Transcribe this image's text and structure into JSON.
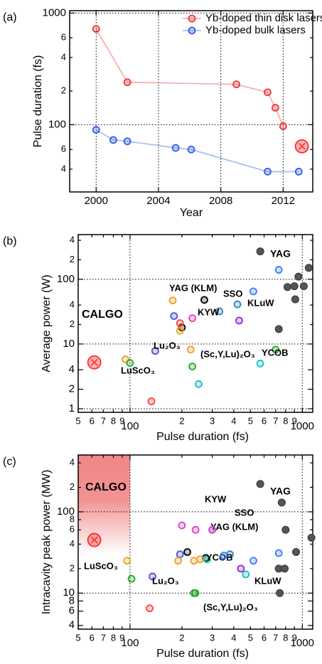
{
  "chart_data": [
    {
      "type": "line",
      "panel_label": "(a)",
      "x_label": "Year",
      "y_label": "Pulse duration (fs)",
      "y_scale": "log",
      "grid": true,
      "legend": "upper right",
      "xlim": [
        1998.3,
        2013.9
      ],
      "ylim": [
        25,
        1050
      ],
      "xticks": [
        2000,
        2004,
        2008,
        2012
      ],
      "yticks": [
        1000,
        {
          "value": 600,
          "label": "6"
        },
        {
          "value": 400,
          "label": "4"
        },
        {
          "value": 200,
          "label": "2"
        },
        100,
        {
          "value": 60,
          "label": "6"
        },
        {
          "value": 40,
          "label": "4"
        }
      ],
      "series": [
        {
          "name": "Yb-doped thin disk lasers",
          "color": "#e8383d",
          "x": [
            2000,
            2002,
            2009,
            2011,
            2011.5,
            2012
          ],
          "values": [
            720,
            240,
            230,
            195,
            142,
            97
          ]
        },
        {
          "name": "Yb-doped bulk lasers",
          "color": "#2f5fe0",
          "x": [
            2000,
            2001.1,
            2002,
            2005.1,
            2006.1,
            2011,
            2013
          ],
          "values": [
            90,
            73,
            71,
            62,
            60,
            38,
            38
          ]
        },
        {
          "color": "#ff2a2a",
          "marker": "cross-circle",
          "x": [
            2013.2
          ],
          "values": [
            64
          ]
        }
      ]
    },
    {
      "type": "scatter",
      "panel_label": "(b)",
      "x_label": "Pulse duration (fs)",
      "y_label": "Average power (W)",
      "x_scale": "log",
      "y_scale": "log",
      "grid": true,
      "xlim": [
        50,
        1150
      ],
      "ylim": [
        0.88,
        490
      ],
      "xticks": [
        {
          "value": 50,
          "label": "5"
        },
        {
          "value": 60,
          "label": "6"
        },
        {
          "value": 70,
          "label": "7"
        },
        {
          "value": 80,
          "label": "8"
        },
        {
          "value": 90,
          "label": "9"
        },
        100,
        {
          "value": 200,
          "label": "2"
        },
        {
          "value": 300,
          "label": "3"
        },
        {
          "value": 400,
          "label": "4"
        },
        {
          "value": 500,
          "label": "5"
        },
        {
          "value": 600,
          "label": "6"
        },
        {
          "value": 700,
          "label": "7"
        },
        {
          "value": 800,
          "label": "8"
        },
        {
          "value": 900,
          "label": "9"
        },
        1000
      ],
      "yticks": [
        {
          "value": 400,
          "label": "4"
        },
        {
          "value": 200,
          "label": "2"
        },
        100,
        {
          "value": 40,
          "label": "4"
        },
        {
          "value": 20,
          "label": "2"
        },
        10,
        4,
        2,
        1
      ],
      "series": [
        {
          "name": "YAG",
          "color": "#555555",
          "label_color": "#000000",
          "marker": "solid",
          "x": [
            570,
            1090,
            950,
            1020,
            900,
            820,
            910,
            730
          ],
          "values": [
            270,
            150,
            110,
            78,
            78,
            76,
            49,
            17
          ]
        },
        {
          "name": "YAG (KLM)",
          "color": "#000000",
          "x": [
            270,
            200
          ],
          "values": [
            48,
            18
          ]
        },
        {
          "name": "SSO",
          "color": "#2a86b8",
          "x": [
            330,
            420
          ],
          "values": [
            32,
            41
          ]
        },
        {
          "name": "KLuW",
          "color": "#8a2be2",
          "x": [
            430
          ],
          "values": [
            23
          ]
        },
        {
          "name": "KYW",
          "color": "#e040c0",
          "x": [
            230
          ],
          "values": [
            25
          ]
        },
        {
          "name": "Lu₂O₃",
          "color": "#4a50e0",
          "x": [
            180,
            140
          ],
          "values": [
            27,
            7.8
          ]
        },
        {
          "name": "LuScO₃",
          "color": "#f0a020",
          "x": [
            94,
            195,
            225,
            177
          ],
          "values": [
            5.8,
            16,
            8.2,
            47
          ]
        },
        {
          "name": "(Sc,Y,Lu)₂O₃",
          "color": "#28a828",
          "x": [
            100,
            230,
            700
          ],
          "values": [
            5.1,
            4.5,
            8.2
          ]
        },
        {
          "name": "YCOB",
          "color": "#20bcc8",
          "x": [
            570,
            250
          ],
          "values": [
            5,
            2.4
          ]
        },
        {
          "color": "#3b7bff",
          "x": [
            730,
            520
          ],
          "values": [
            140,
            65
          ]
        },
        {
          "color": "#ff4040",
          "x": [
            195,
            133
          ],
          "values": [
            21,
            1.3
          ]
        },
        {
          "name": "CALGO",
          "color": "#ff2a2a",
          "marker": "cross-circle",
          "x": [
            62
          ],
          "values": [
            5.2
          ]
        }
      ]
    },
    {
      "type": "scatter",
      "panel_label": "(c)",
      "x_label": "Pulse duration (fs)",
      "y_label": "Intracavity peak power (MW)",
      "x_scale": "log",
      "y_scale": "log",
      "grid": true,
      "xlim": [
        50,
        1150
      ],
      "ylim": [
        3.6,
        500
      ],
      "xticks": [
        {
          "value": 50,
          "label": "5"
        },
        {
          "value": 60,
          "label": "6"
        },
        {
          "value": 70,
          "label": "7"
        },
        {
          "value": 80,
          "label": "8"
        },
        {
          "value": 90,
          "label": "9"
        },
        100,
        {
          "value": 200,
          "label": "2"
        },
        {
          "value": 300,
          "label": "3"
        },
        {
          "value": 400,
          "label": "4"
        },
        {
          "value": 500,
          "label": "5"
        },
        {
          "value": 600,
          "label": "6"
        },
        {
          "value": 700,
          "label": "7"
        },
        {
          "value": 800,
          "label": "8"
        },
        {
          "value": 900,
          "label": "9"
        },
        1000
      ],
      "yticks": [
        {
          "value": 400,
          "label": "4"
        },
        {
          "value": 200,
          "label": "2"
        },
        100,
        {
          "value": 80,
          "label": "8"
        },
        {
          "value": 60,
          "label": "6"
        },
        {
          "value": 40,
          "label": "4"
        },
        {
          "value": 20,
          "label": "2"
        },
        10,
        8,
        6,
        4
      ],
      "series": [
        {
          "name": "YAG",
          "color": "#555555",
          "label_color": "#000000",
          "marker": "solid",
          "x": [
            570,
            760,
            800,
            920,
            730,
            790,
            740,
            1130
          ],
          "values": [
            220,
            130,
            60,
            32,
            20,
            20,
            10,
            48
          ]
        },
        {
          "name": "YAG (KLM)",
          "color": "#000000",
          "x": [
            215,
            275
          ],
          "values": [
            32,
            27
          ]
        },
        {
          "name": "SSO",
          "color": "#2a86b8",
          "x": [
            300,
            380
          ],
          "values": [
            60,
            30
          ]
        },
        {
          "name": "KLuW",
          "color": "#8a2be2",
          "x": [
            440
          ],
          "values": [
            20
          ]
        },
        {
          "name": "KYW",
          "color": "#e040c0",
          "x": [
            200,
            240,
            300
          ],
          "values": [
            68,
            60,
            60
          ]
        },
        {
          "name": "Lu₂O₃",
          "color": "#4a50e0",
          "x": [
            135,
            195
          ],
          "values": [
            16,
            30
          ]
        },
        {
          "name": "LuScO₃",
          "color": "#f0a020",
          "x": [
            96,
            190,
            235,
            255
          ],
          "values": [
            25,
            25,
            25,
            26
          ]
        },
        {
          "name": "(Sc,Y,Lu)₂O₃",
          "color": "#28a828",
          "x": [
            102,
            235,
            240
          ],
          "values": [
            15,
            10,
            10
          ]
        },
        {
          "name": "YCOB",
          "color": "#20bcc8",
          "x": [
            280,
            470
          ],
          "values": [
            26,
            17
          ]
        },
        {
          "color": "#3b7bff",
          "x": [
            730,
            520,
            350
          ],
          "values": [
            31,
            25,
            29
          ]
        },
        {
          "color": "#ff4040",
          "x": [
            130
          ],
          "values": [
            6.5
          ]
        },
        {
          "name": "CALGO",
          "color": "#ff2a2a",
          "marker": "cross-circle",
          "x": [
            62
          ],
          "values": [
            45
          ]
        }
      ]
    }
  ]
}
